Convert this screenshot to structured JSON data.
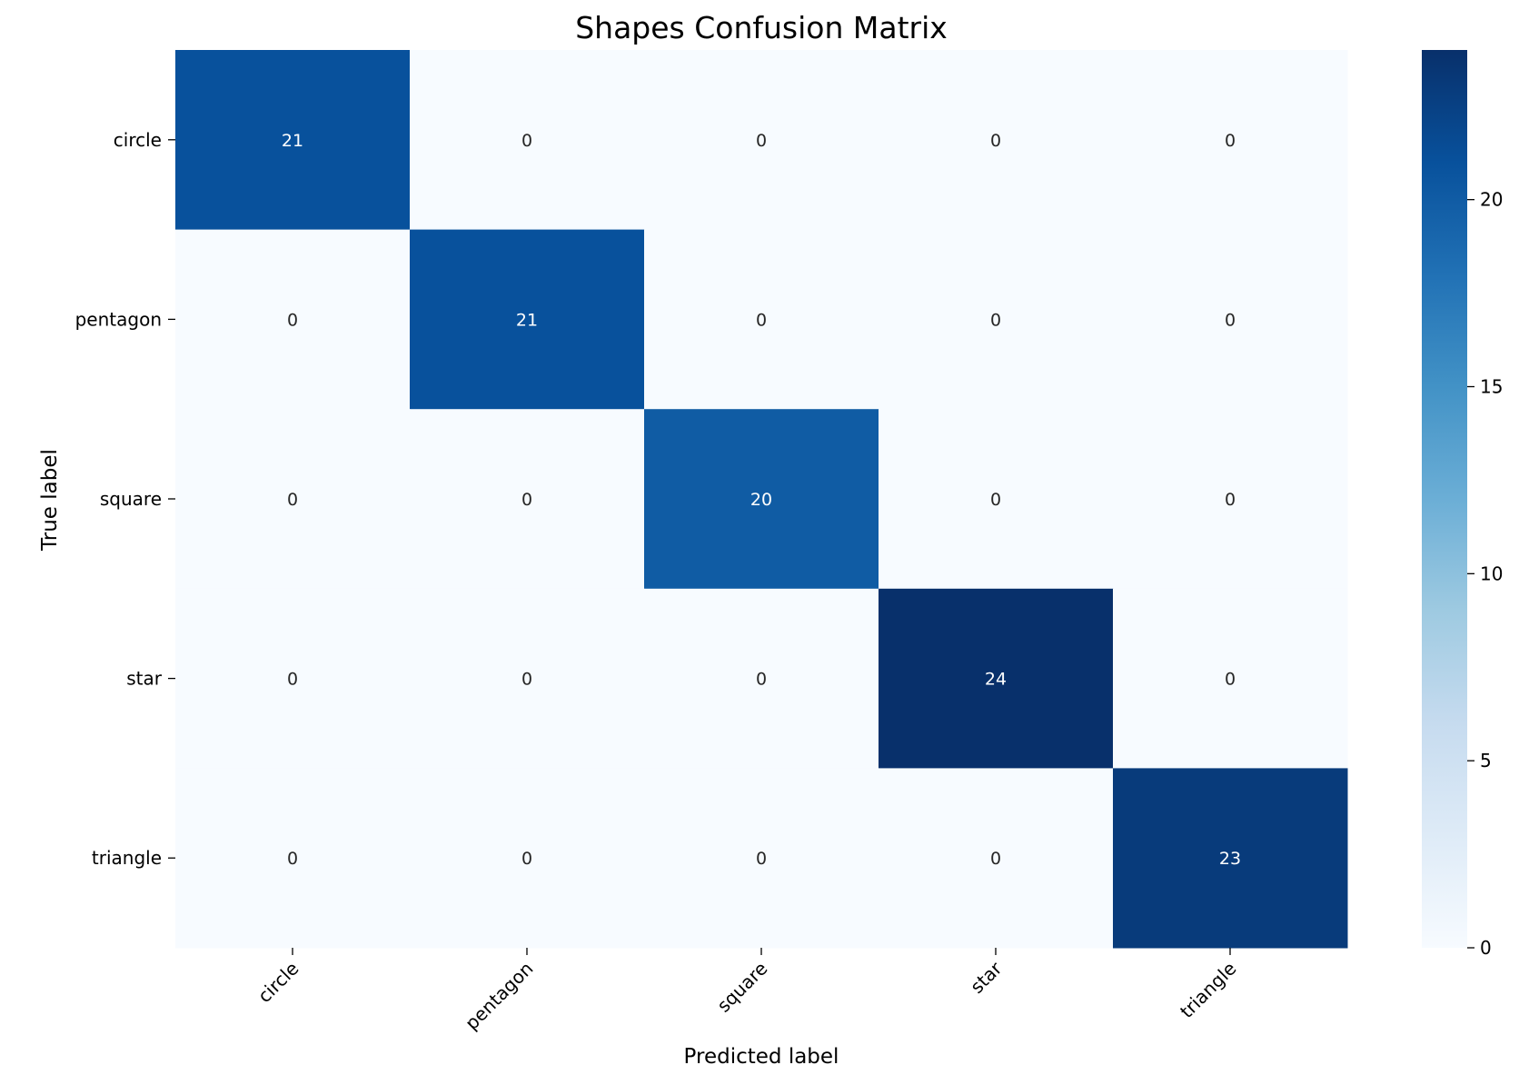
{
  "chart_data": {
    "type": "heatmap",
    "title": "Shapes Confusion Matrix",
    "xlabel": "Predicted label",
    "ylabel": "True label",
    "x_categories": [
      "circle",
      "pentagon",
      "square",
      "star",
      "triangle"
    ],
    "y_categories": [
      "circle",
      "pentagon",
      "square",
      "star",
      "triangle"
    ],
    "matrix": [
      [
        21,
        0,
        0,
        0,
        0
      ],
      [
        0,
        21,
        0,
        0,
        0
      ],
      [
        0,
        0,
        20,
        0,
        0
      ],
      [
        0,
        0,
        0,
        24,
        0
      ],
      [
        0,
        0,
        0,
        0,
        23
      ]
    ],
    "colormap": "Blues",
    "colorbar": {
      "min": 0,
      "max": 24,
      "ticks": [
        0,
        5,
        10,
        15,
        20
      ]
    },
    "colors": {
      "low": "#f7fbff",
      "high": "#08306b",
      "text_light": "#ffffff",
      "text_dark": "#262626"
    },
    "grid": false,
    "legend": "colorbar-right"
  }
}
